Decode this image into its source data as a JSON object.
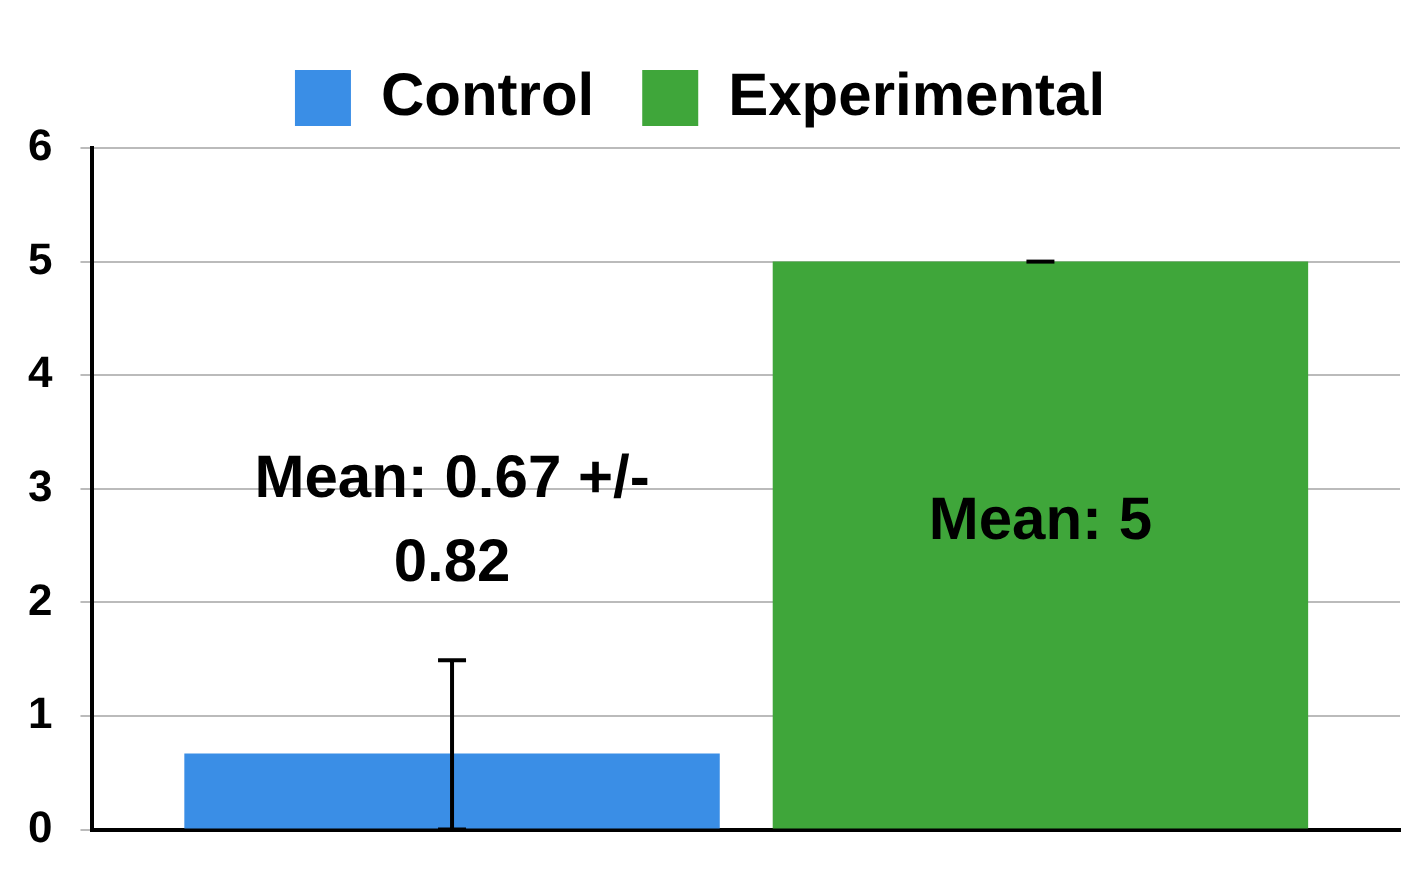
{
  "chart_data": {
    "type": "bar",
    "categories": [
      null
    ],
    "series": [
      {
        "name": "Control",
        "color": "#3a8ee6",
        "values": [
          0.67
        ],
        "errors": [
          [
            0,
            1.49
          ]
        ]
      },
      {
        "name": "Experimental",
        "color": "#3fa63a",
        "values": [
          5
        ],
        "errors": [
          [
            5,
            5
          ]
        ]
      }
    ],
    "ylim": [
      0,
      6
    ],
    "yticks": [
      0,
      1,
      2,
      3,
      4,
      5,
      6
    ],
    "grid": "y",
    "legend": "top",
    "annotations": [
      "Mean: 0.67 +/- 0.82",
      "Mean: 5"
    ]
  }
}
